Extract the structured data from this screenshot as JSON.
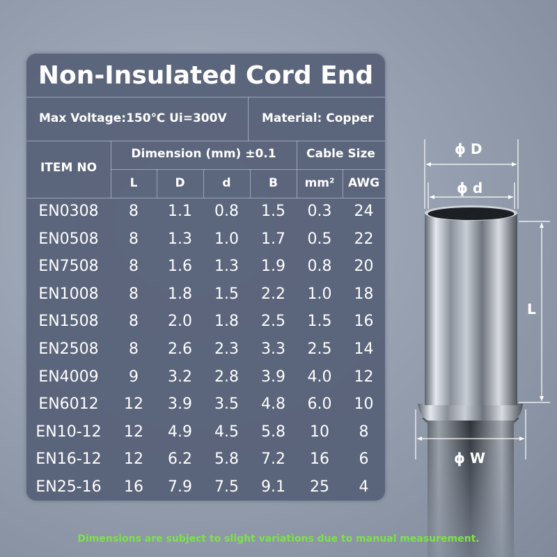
{
  "title": "Non-Insulated Cord End",
  "specs": {
    "voltage": "Max Voltage:150℃  Ui=300V",
    "material": "Material: Copper"
  },
  "table": {
    "item_header": "ITEM NO",
    "dimension_header": "Dimension    (mm)  ±0.1",
    "cable_header": "Cable Size",
    "subheaders": [
      "L",
      "D",
      "d",
      "B",
      "mm²",
      "AWG"
    ],
    "rows": [
      [
        "EN0308",
        "8",
        "1.1",
        "0.8",
        "1.5",
        "0.3",
        "24"
      ],
      [
        "EN0508",
        "8",
        "1.3",
        "1.0",
        "1.7",
        "0.5",
        "22"
      ],
      [
        "EN7508",
        "8",
        "1.6",
        "1.3",
        "1.9",
        "0.8",
        "20"
      ],
      [
        "EN1008",
        "8",
        "1.8",
        "1.5",
        "2.2",
        "1.0",
        "18"
      ],
      [
        "EN1508",
        "8",
        "2.0",
        "1.8",
        "2.5",
        "1.5",
        "16"
      ],
      [
        "EN2508",
        "8",
        "2.6",
        "2.3",
        "3.3",
        "2.5",
        "14"
      ],
      [
        "EN4009",
        "9",
        "3.2",
        "2.8",
        "3.9",
        "4.0",
        "12"
      ],
      [
        "EN6012",
        "12",
        "3.9",
        "3.5",
        "4.8",
        "6.0",
        "10"
      ],
      [
        "EN10-12",
        "12",
        "4.9",
        "4.5",
        "5.8",
        "10",
        "8"
      ],
      [
        "EN16-12",
        "12",
        "6.2",
        "5.8",
        "7.2",
        "16",
        "6"
      ],
      [
        "EN25-16",
        "16",
        "7.9",
        "7.5",
        "9.1",
        "25",
        "4"
      ]
    ]
  },
  "diagram_labels": {
    "outer_diameter": "ϕ D",
    "inner_diameter": "ϕ d",
    "length": "L",
    "width": "ϕ W"
  },
  "footnote": "Dimensions are subject to slight variations due to manual measurement.",
  "colors": {
    "panel": "#566076",
    "footnote": "#7ee24a",
    "text": "#ffffff"
  }
}
